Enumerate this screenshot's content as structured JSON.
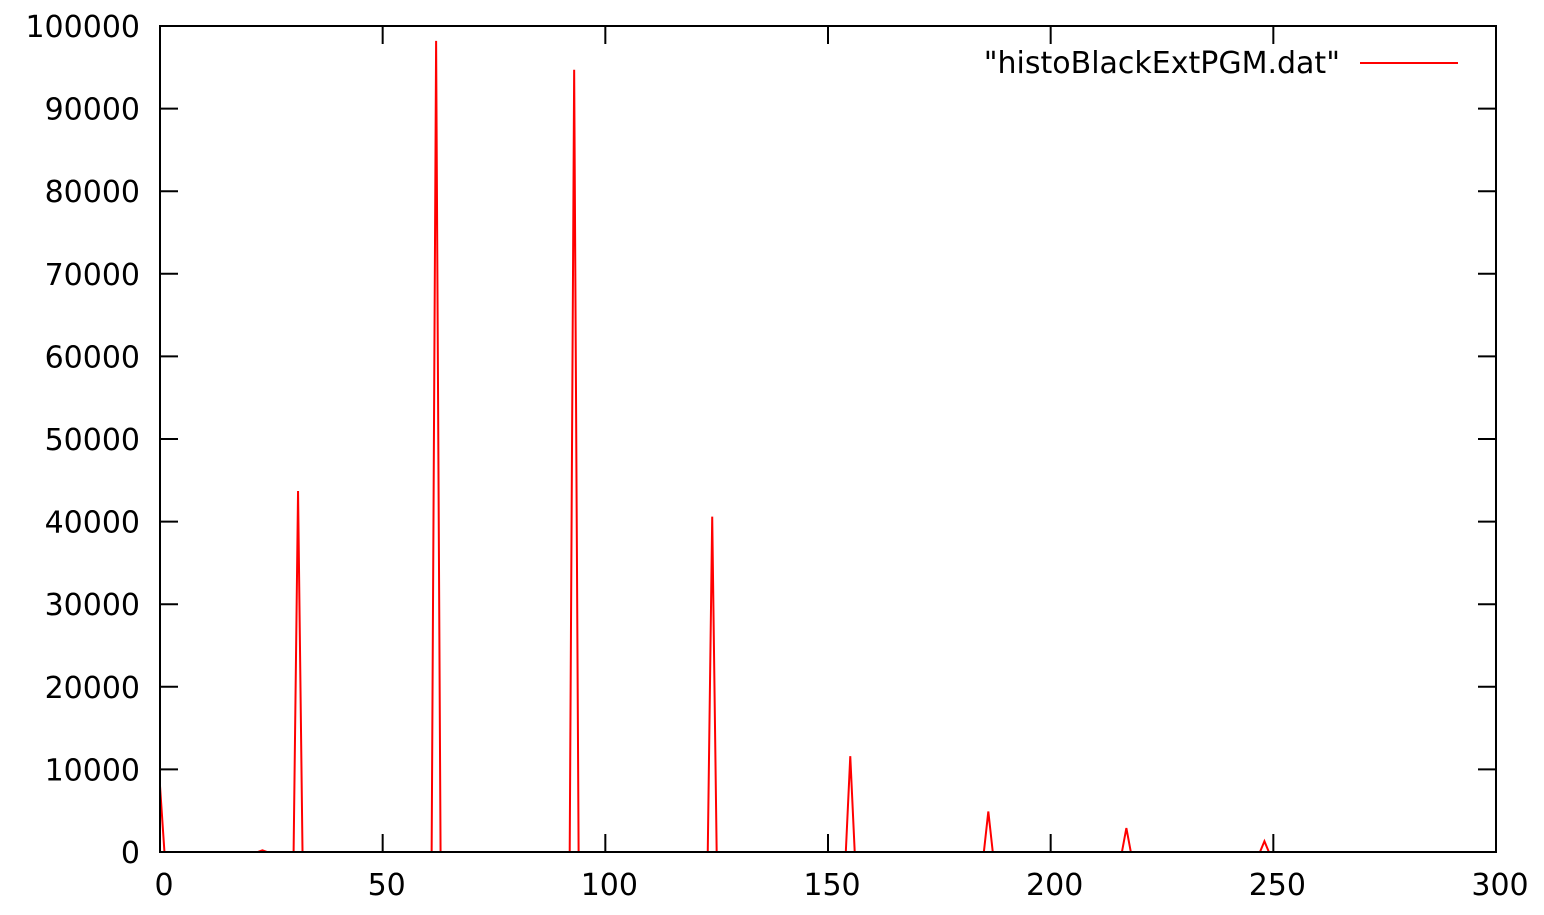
{
  "chart_data": {
    "type": "line",
    "title": "",
    "xlabel": "",
    "ylabel": "",
    "xlim": [
      0,
      300
    ],
    "ylim": [
      0,
      100000
    ],
    "x_ticks": [
      0,
      50,
      100,
      150,
      200,
      250,
      300
    ],
    "y_ticks": [
      0,
      10000,
      20000,
      30000,
      40000,
      50000,
      60000,
      70000,
      80000,
      90000,
      100000
    ],
    "grid": false,
    "legend_position": "top-right",
    "series": [
      {
        "name": "\"histoBlackExtPGM.dat\"",
        "color": "#ff0000",
        "points": [
          [
            0,
            8000
          ],
          [
            1,
            0
          ],
          [
            22,
            0
          ],
          [
            23,
            200
          ],
          [
            24,
            0
          ],
          [
            30,
            0
          ],
          [
            31,
            43700
          ],
          [
            32,
            0
          ],
          [
            61,
            0
          ],
          [
            62,
            98200
          ],
          [
            63,
            0
          ],
          [
            92,
            0
          ],
          [
            93,
            94700
          ],
          [
            94,
            0
          ],
          [
            123,
            0
          ],
          [
            124,
            40600
          ],
          [
            125,
            0
          ],
          [
            154,
            0
          ],
          [
            155,
            11600
          ],
          [
            156,
            0
          ],
          [
            185,
            0
          ],
          [
            186,
            4900
          ],
          [
            187,
            0
          ],
          [
            216,
            0
          ],
          [
            217,
            2900
          ],
          [
            218,
            0
          ],
          [
            247,
            0
          ],
          [
            248,
            1300
          ],
          [
            249,
            0
          ],
          [
            255,
            0
          ]
        ]
      }
    ]
  }
}
